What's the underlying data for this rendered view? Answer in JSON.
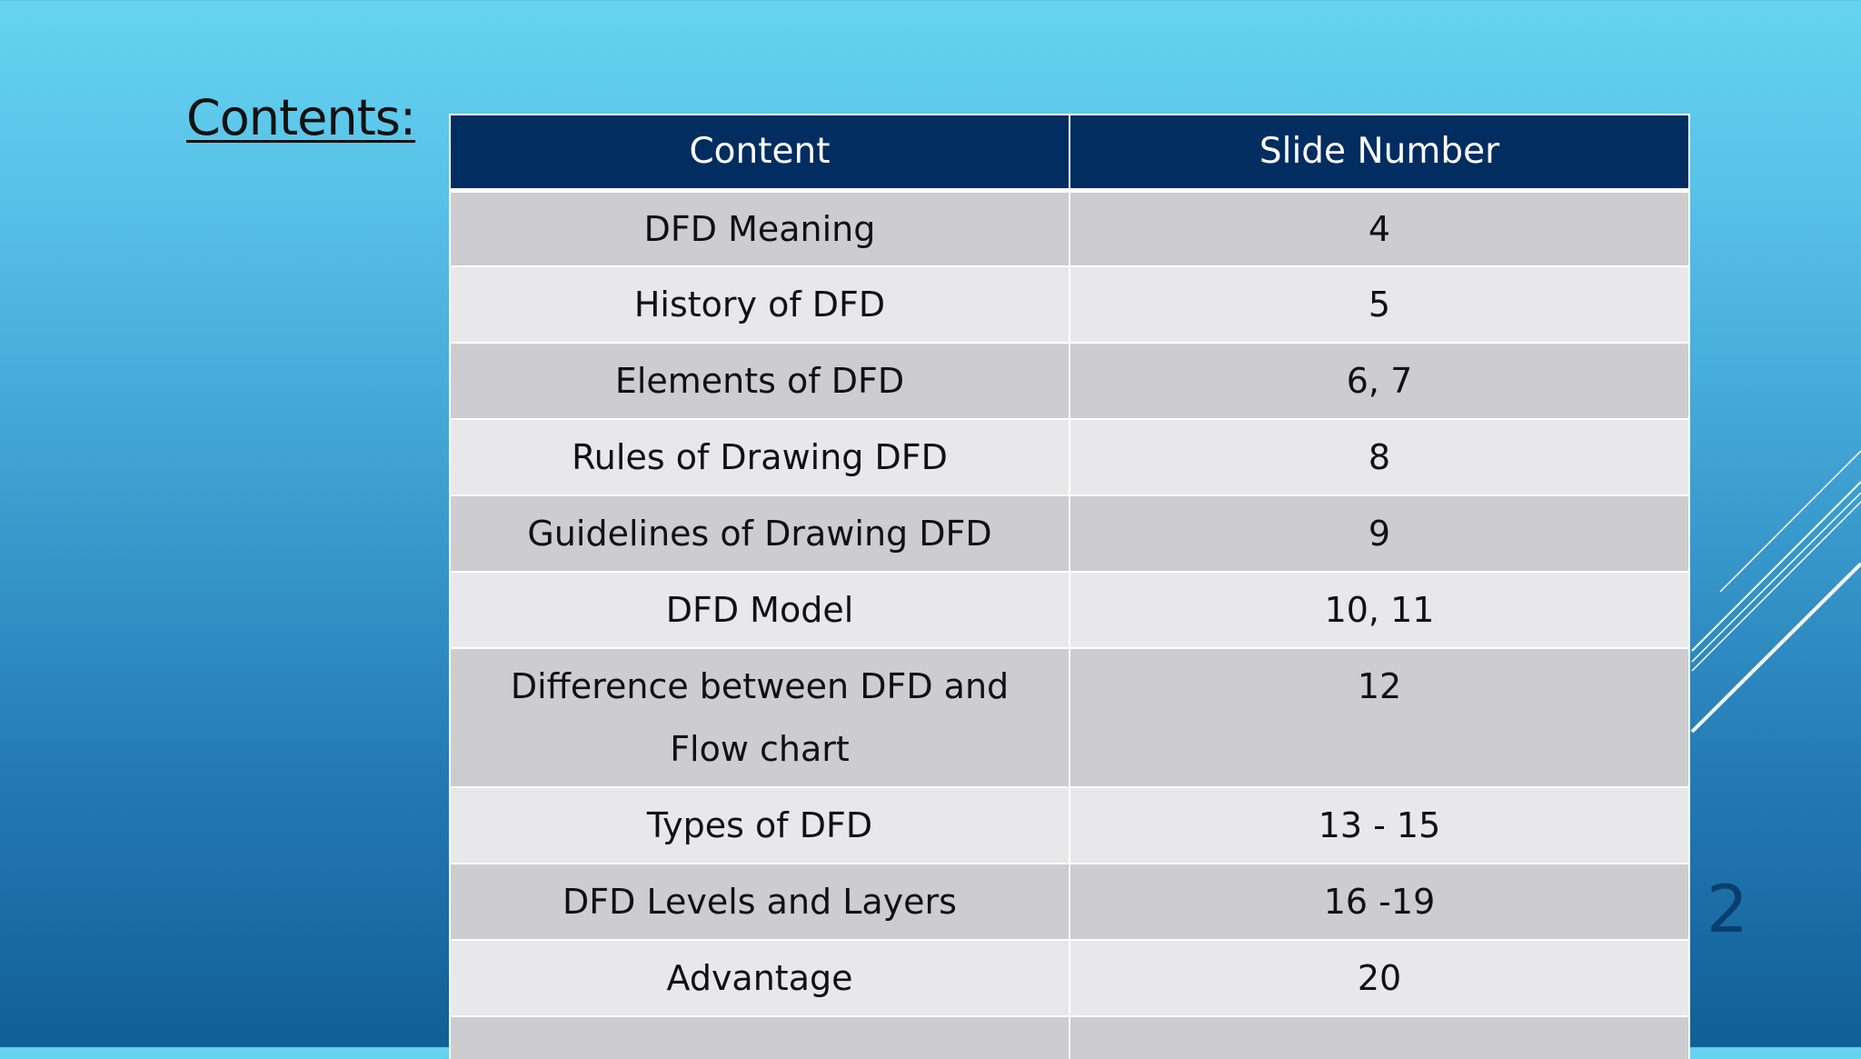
{
  "slide": {
    "title": "Contents:",
    "page_number": "2"
  },
  "table": {
    "headers": [
      "Content",
      "Slide Number"
    ],
    "rows": [
      {
        "content": "DFD Meaning",
        "slide": "4"
      },
      {
        "content": "History of DFD",
        "slide": "5"
      },
      {
        "content": "Elements of DFD",
        "slide": "6, 7"
      },
      {
        "content": "Rules of Drawing DFD",
        "slide": "8"
      },
      {
        "content": "Guidelines of Drawing DFD",
        "slide": "9"
      },
      {
        "content": "DFD Model",
        "slide": "10, 11"
      },
      {
        "content": "Difference between DFD and Flow chart",
        "slide": "12"
      },
      {
        "content": "Types of DFD",
        "slide": "13 - 15"
      },
      {
        "content": "DFD Levels and Layers",
        "slide": "16 -19"
      },
      {
        "content": "Advantage",
        "slide": "20"
      }
    ]
  },
  "colors": {
    "header_bg": "#022d61",
    "row_odd": "#cdcdd0",
    "row_even": "#e8e8ea",
    "accent_line": "#ffffff"
  }
}
